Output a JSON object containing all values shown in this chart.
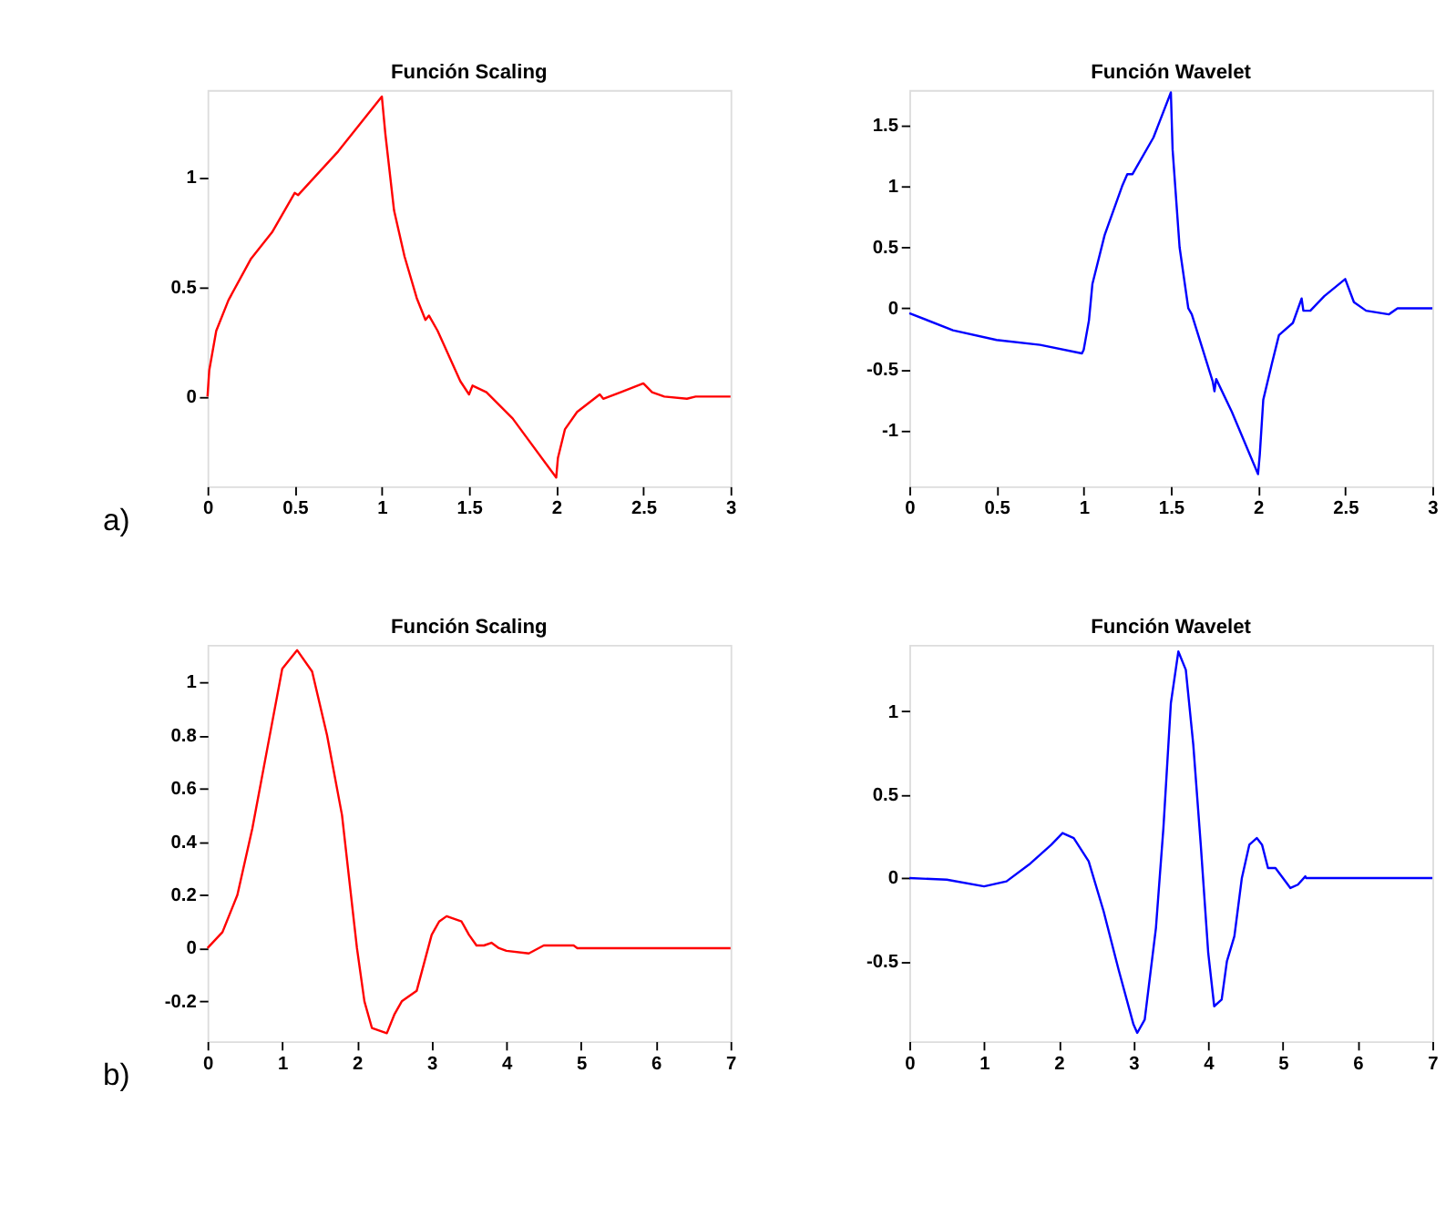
{
  "chart_data": [
    {
      "type": "line",
      "title": "Función Scaling",
      "annotations": [
        "a)"
      ],
      "grid": false,
      "xlim": [
        0,
        3
      ],
      "xticks": [
        0,
        0.5,
        1,
        1.5,
        2,
        2.5,
        3
      ],
      "ylim": [
        -0.41,
        1.4
      ],
      "yticks": [
        0,
        0.5,
        1
      ],
      "x": [
        0,
        0.01,
        0.05,
        0.12,
        0.25,
        0.37,
        0.5,
        0.52,
        0.75,
        1.0,
        1.02,
        1.07,
        1.13,
        1.2,
        1.25,
        1.27,
        1.32,
        1.45,
        1.5,
        1.52,
        1.6,
        1.75,
        2.0,
        2.01,
        2.05,
        2.12,
        2.25,
        2.27,
        2.37,
        2.5,
        2.55,
        2.62,
        2.75,
        2.8,
        3
      ],
      "series": [
        {
          "color": "#ff0000",
          "values": [
            0,
            0.12,
            0.3,
            0.44,
            0.63,
            0.75,
            0.93,
            0.92,
            1.12,
            1.37,
            1.2,
            0.85,
            0.64,
            0.45,
            0.35,
            0.37,
            0.3,
            0.07,
            0.01,
            0.05,
            0.02,
            -0.1,
            -0.37,
            -0.28,
            -0.15,
            -0.07,
            0.01,
            -0.01,
            0.02,
            0.06,
            0.02,
            0.0,
            -0.01,
            0.0,
            0
          ]
        }
      ]
    },
    {
      "type": "line",
      "title": "Función Wavelet",
      "grid": false,
      "xlim": [
        0,
        3
      ],
      "xticks": [
        0,
        0.5,
        1,
        1.5,
        2,
        2.5,
        3
      ],
      "ylim": [
        -1.46,
        1.79
      ],
      "yticks": [
        -1,
        -0.5,
        0,
        0.5,
        1,
        1.5
      ],
      "x": [
        0,
        0.25,
        0.5,
        0.75,
        0.99,
        1.0,
        1.03,
        1.05,
        1.12,
        1.22,
        1.25,
        1.28,
        1.4,
        1.5,
        1.51,
        1.55,
        1.6,
        1.62,
        1.74,
        1.75,
        1.76,
        1.85,
        2.0,
        2.01,
        2.03,
        2.08,
        2.12,
        2.2,
        2.25,
        2.26,
        2.3,
        2.38,
        2.5,
        2.55,
        2.62,
        2.75,
        2.8,
        3
      ],
      "series": [
        {
          "color": "#0000ff",
          "values": [
            -0.04,
            -0.18,
            -0.26,
            -0.3,
            -0.37,
            -0.34,
            -0.1,
            0.2,
            0.6,
            1.0,
            1.1,
            1.1,
            1.4,
            1.77,
            1.3,
            0.5,
            0.0,
            -0.05,
            -0.6,
            -0.68,
            -0.58,
            -0.85,
            -1.36,
            -1.2,
            -0.75,
            -0.45,
            -0.22,
            -0.12,
            0.08,
            -0.02,
            -0.02,
            0.1,
            0.24,
            0.05,
            -0.02,
            -0.05,
            0.0,
            0
          ]
        }
      ]
    },
    {
      "type": "line",
      "title": "Función Scaling",
      "annotations": [
        "b)"
      ],
      "grid": false,
      "xlim": [
        0,
        7
      ],
      "xticks": [
        0,
        1,
        2,
        3,
        4,
        5,
        6,
        7
      ],
      "ylim": [
        -0.35,
        1.14
      ],
      "yticks": [
        -0.2,
        0,
        0.2,
        0.4,
        0.6,
        0.8,
        1
      ],
      "x": [
        0,
        0.2,
        0.4,
        0.6,
        0.8,
        1.0,
        1.2,
        1.4,
        1.6,
        1.8,
        2.0,
        2.1,
        2.2,
        2.4,
        2.5,
        2.6,
        2.8,
        3.0,
        3.1,
        3.2,
        3.4,
        3.5,
        3.6,
        3.7,
        3.8,
        3.9,
        4.0,
        4.3,
        4.5,
        4.9,
        4.95,
        7
      ],
      "series": [
        {
          "color": "#ff0000",
          "values": [
            0,
            0.06,
            0.2,
            0.45,
            0.75,
            1.05,
            1.12,
            1.04,
            0.8,
            0.5,
            0.0,
            -0.2,
            -0.3,
            -0.32,
            -0.25,
            -0.2,
            -0.16,
            0.05,
            0.1,
            0.12,
            0.1,
            0.05,
            0.01,
            0.01,
            0.02,
            0.0,
            -0.01,
            -0.02,
            0.01,
            0.01,
            0.0,
            0
          ]
        }
      ]
    },
    {
      "type": "line",
      "title": "Función Wavelet",
      "grid": false,
      "xlim": [
        0,
        7
      ],
      "xticks": [
        0,
        1,
        2,
        3,
        4,
        5,
        6,
        7
      ],
      "ylim": [
        -0.98,
        1.4
      ],
      "yticks": [
        -0.5,
        0,
        0.5,
        1
      ],
      "x": [
        0,
        0.5,
        1.0,
        1.3,
        1.6,
        1.9,
        2.05,
        2.2,
        2.4,
        2.6,
        2.8,
        3.0,
        3.05,
        3.15,
        3.3,
        3.4,
        3.5,
        3.6,
        3.7,
        3.8,
        3.9,
        4.0,
        4.08,
        4.18,
        4.25,
        4.35,
        4.45,
        4.55,
        4.65,
        4.72,
        4.8,
        4.9,
        5.0,
        5.1,
        5.2,
        5.3,
        5.31,
        7
      ],
      "series": [
        {
          "color": "#0000ff",
          "values": [
            0,
            -0.01,
            -0.05,
            -0.02,
            0.08,
            0.2,
            0.27,
            0.24,
            0.1,
            -0.2,
            -0.55,
            -0.88,
            -0.93,
            -0.85,
            -0.3,
            0.3,
            1.05,
            1.36,
            1.25,
            0.8,
            0.2,
            -0.45,
            -0.77,
            -0.73,
            -0.5,
            -0.35,
            0.0,
            0.2,
            0.24,
            0.2,
            0.06,
            0.06,
            0.0,
            -0.06,
            -0.04,
            0.01,
            0.0,
            0
          ]
        }
      ]
    }
  ]
}
